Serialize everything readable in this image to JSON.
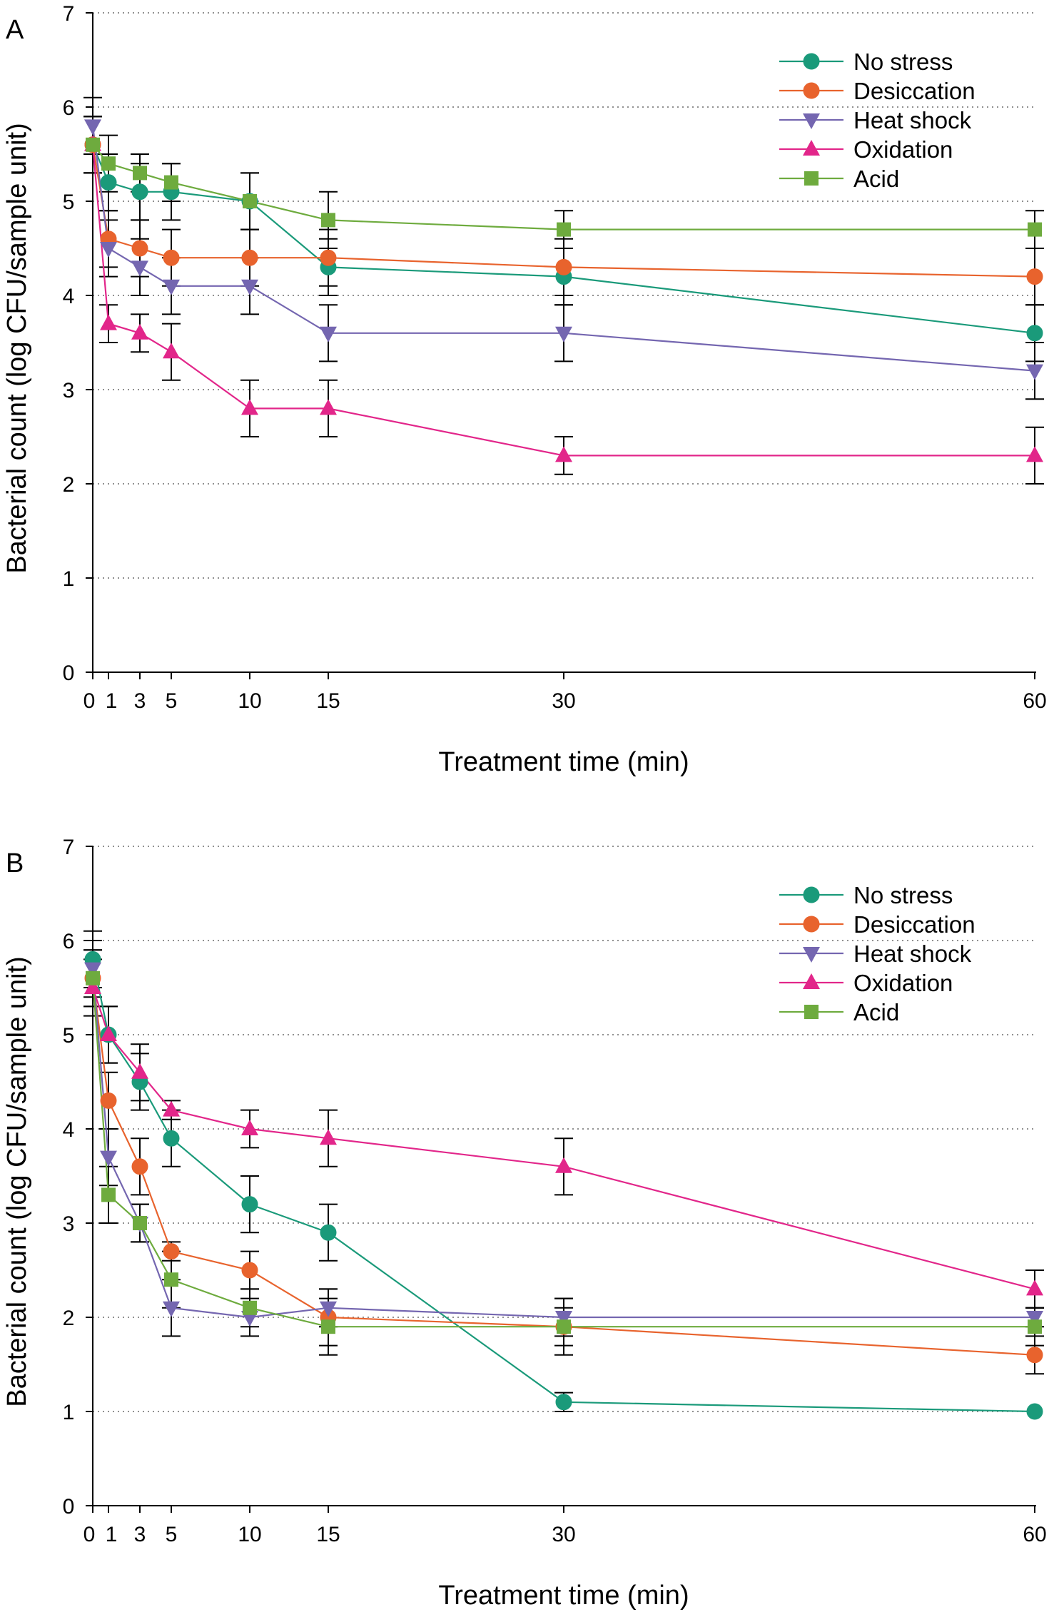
{
  "figure": {
    "panels": [
      "A",
      "B"
    ]
  },
  "colors": {
    "No stress": "#1a9a7a",
    "Desiccation": "#e8632d",
    "Heat shock": "#7466b0",
    "Oxidation": "#e2268a",
    "Acid": "#6eab3e"
  },
  "markers": {
    "No stress": "circle",
    "Desiccation": "circle",
    "Heat shock": "triangle-down",
    "Oxidation": "triangle-up",
    "Acid": "square"
  },
  "chart_data": [
    {
      "type": "line",
      "panel_label": "A",
      "xlabel": "Treatment time (min)",
      "ylabel": "Bacterial count (log CFU/sample unit)",
      "x": [
        0,
        1,
        3,
        5,
        10,
        15,
        30,
        60
      ],
      "x_tick_labels": [
        "0",
        "1",
        "3",
        "5",
        "10",
        "15",
        "30",
        "60"
      ],
      "xlim": [
        0,
        60
      ],
      "ylim": [
        0,
        7
      ],
      "y_ticks": [
        "0",
        "1",
        "2",
        "3",
        "4",
        "5",
        "6",
        "7"
      ],
      "grid": "horizontal dotted",
      "legend_position": "top-right",
      "series": [
        {
          "name": "No stress",
          "values": [
            5.6,
            5.2,
            5.1,
            5.1,
            5.0,
            4.3,
            4.2,
            3.6
          ],
          "errors": [
            0.3,
            0.3,
            0.3,
            0.3,
            0.3,
            0.3,
            0.3,
            0.3
          ]
        },
        {
          "name": "Desiccation",
          "values": [
            5.6,
            4.6,
            4.5,
            4.4,
            4.4,
            4.4,
            4.3,
            4.2
          ],
          "errors": [
            0.3,
            0.3,
            0.3,
            0.3,
            0.3,
            0.3,
            0.3,
            0.3
          ]
        },
        {
          "name": "Heat shock",
          "values": [
            5.8,
            4.5,
            4.3,
            4.1,
            4.1,
            3.6,
            3.6,
            3.2
          ],
          "errors": [
            0.3,
            0.3,
            0.3,
            0.3,
            0.3,
            0.3,
            0.3,
            0.3
          ]
        },
        {
          "name": "Oxidation",
          "values": [
            5.6,
            3.7,
            3.6,
            3.4,
            2.8,
            2.8,
            2.3,
            2.3
          ],
          "errors": [
            0.3,
            0.2,
            0.2,
            0.3,
            0.3,
            0.3,
            0.2,
            0.3
          ]
        },
        {
          "name": "Acid",
          "values": [
            5.6,
            5.4,
            5.3,
            5.2,
            5.0,
            4.8,
            4.7,
            4.7
          ],
          "errors": [
            0.3,
            0.3,
            0.2,
            0.2,
            0.3,
            0.3,
            0.2,
            0.2
          ]
        }
      ]
    },
    {
      "type": "line",
      "panel_label": "B",
      "xlabel": "Treatment time (min)",
      "ylabel": "Bacterial count (log CFU/sample unit)",
      "x": [
        0,
        1,
        3,
        5,
        10,
        15,
        30,
        60
      ],
      "x_tick_labels": [
        "0",
        "1",
        "3",
        "5",
        "10",
        "15",
        "30",
        "60"
      ],
      "xlim": [
        0,
        60
      ],
      "ylim": [
        0,
        7
      ],
      "y_ticks": [
        "0",
        "1",
        "2",
        "3",
        "4",
        "5",
        "6",
        "7"
      ],
      "grid": "horizontal dotted",
      "legend_position": "top-right",
      "series": [
        {
          "name": "No stress",
          "values": [
            5.8,
            5.0,
            4.5,
            3.9,
            3.2,
            2.9,
            1.1,
            1.0
          ],
          "errors": [
            0.3,
            0.3,
            0.3,
            0.3,
            0.3,
            0.3,
            0.1,
            0.0
          ]
        },
        {
          "name": "Desiccation",
          "values": [
            5.6,
            4.3,
            3.6,
            2.7,
            2.5,
            2.0,
            1.9,
            1.6
          ],
          "errors": [
            0.3,
            0.3,
            0.3,
            0.1,
            0.2,
            0.3,
            0.3,
            0.2
          ]
        },
        {
          "name": "Heat shock",
          "values": [
            5.7,
            3.7,
            3.0,
            2.1,
            2.0,
            2.1,
            2.0,
            2.0
          ],
          "errors": [
            0.3,
            0.3,
            0.2,
            0.3,
            0.2,
            0.2,
            0.2,
            0.1
          ]
        },
        {
          "name": "Oxidation",
          "values": [
            5.5,
            5.0,
            4.6,
            4.2,
            4.0,
            3.9,
            3.6,
            2.3
          ],
          "errors": [
            0.3,
            0.3,
            0.3,
            0.1,
            0.2,
            0.3,
            0.3,
            0.2
          ]
        },
        {
          "name": "Acid",
          "values": [
            5.6,
            3.3,
            3.0,
            2.4,
            2.1,
            1.9,
            1.9,
            1.9
          ],
          "errors": [
            0.3,
            0.3,
            0.2,
            0.3,
            0.2,
            0.3,
            0.2,
            0.2
          ]
        }
      ]
    }
  ]
}
